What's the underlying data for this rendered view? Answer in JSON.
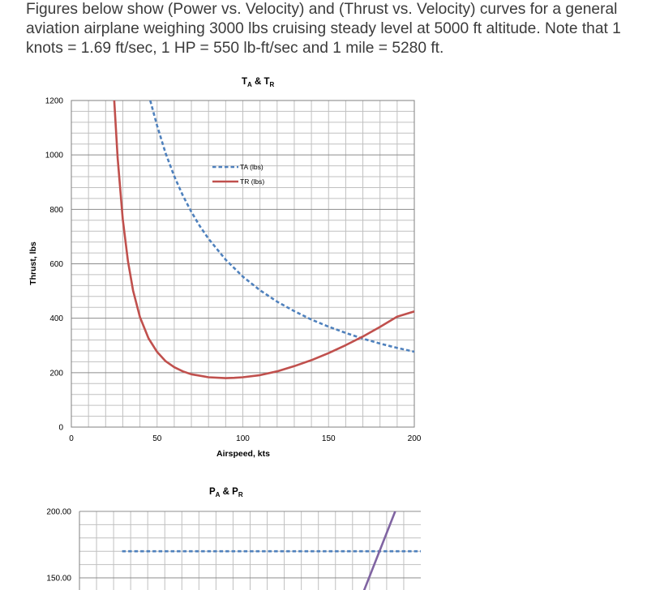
{
  "intro": {
    "text": "Figures below show (Power vs. Velocity) and (Thrust vs. Velocity) curves for a general aviation airplane weighing 3000 lbs cruising steady level at 5000 ft altitude. Note that 1 knots = 1.69 ft/sec, 1 HP = 550 lb-ft/sec and 1 mile = 5280 ft."
  },
  "chart_data": [
    {
      "type": "line",
      "title_main": "T",
      "title_sub1": "A",
      "title_mid": " & T",
      "title_sub2": "R",
      "xlabel": "Airspeed, kts",
      "ylabel": "Thrust, lbs",
      "xlim": [
        0,
        200
      ],
      "ylim": [
        0,
        1200
      ],
      "x_ticks": [
        "0",
        "50",
        "100",
        "150",
        "200"
      ],
      "y_ticks": [
        "0",
        "200",
        "400",
        "600",
        "800",
        "1000",
        "1200"
      ],
      "grid": true,
      "legend_position": "upper-middle",
      "series": [
        {
          "name": "TA (lbs)",
          "color": "#4f81bd",
          "style": "dashed",
          "x": [
            46,
            50,
            55,
            60,
            65,
            70,
            75,
            80,
            90,
            100,
            110,
            120,
            130,
            140,
            150,
            160,
            170,
            180,
            190,
            200
          ],
          "y": [
            1200,
            1107,
            1006,
            922,
            851,
            791,
            738,
            692,
            615,
            553,
            503,
            461,
            426,
            395,
            369,
            346,
            325,
            307,
            291,
            277
          ]
        },
        {
          "name": "TR (lbs)",
          "color": "#c0504d",
          "style": "solid",
          "x": [
            25,
            27,
            30,
            33,
            36,
            40,
            45,
            50,
            55,
            60,
            65,
            70,
            80,
            90,
            95,
            100,
            110,
            120,
            130,
            140,
            150,
            160,
            170,
            180,
            190,
            200
          ],
          "y": [
            1200,
            989,
            764,
            610,
            502,
            404,
            326,
            276,
            242,
            220,
            205,
            194,
            183,
            180,
            181,
            183,
            191,
            205,
            224,
            246,
            272,
            301,
            333,
            368,
            406,
            425
          ]
        }
      ]
    },
    {
      "type": "line",
      "title_main": "P",
      "title_sub1": "A",
      "title_mid": " & P",
      "title_sub2": "R",
      "y_ticks": [
        "200.00",
        "150.00"
      ],
      "grid": true,
      "series": [
        {
          "color": "#4f81bd",
          "style": "dashed",
          "x": [
            25,
            200
          ],
          "y": [
            170,
            170
          ]
        },
        {
          "color": "#8064a2",
          "style": "solid",
          "x": [
            162,
            185
          ],
          "y": [
            125,
            200
          ]
        }
      ]
    }
  ]
}
